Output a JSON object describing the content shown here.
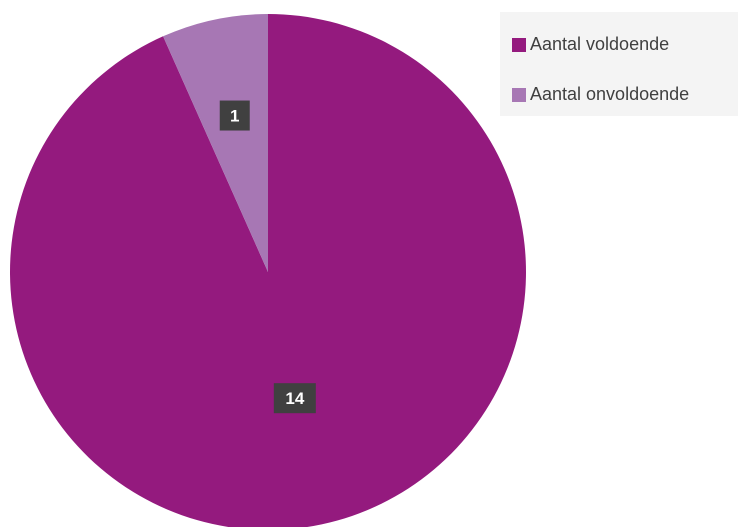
{
  "chart_data": {
    "type": "pie",
    "title": "",
    "categories": [
      "Aantal voldoende",
      "Aantal onvoldoende"
    ],
    "values": [
      14,
      1
    ],
    "colors": [
      "#941a7e",
      "#a777b4"
    ],
    "data_labels": [
      "14",
      "1"
    ],
    "legend_placement": "top-right",
    "grid": false
  },
  "legend": {
    "items": [
      {
        "label": "Aantal voldoende",
        "color": "#941a7e"
      },
      {
        "label": "Aantal onvoldoende",
        "color": "#a777b4"
      }
    ]
  },
  "label_box_color": "#404040"
}
